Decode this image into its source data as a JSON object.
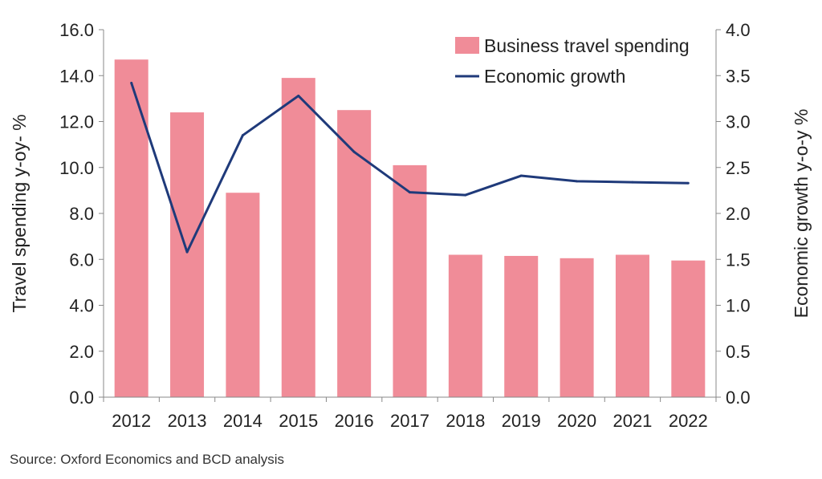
{
  "chart_data": {
    "type": "bar",
    "categories": [
      "2012",
      "2013",
      "2014",
      "2015",
      "2016",
      "2017",
      "2018",
      "2019",
      "2020",
      "2021",
      "2022"
    ],
    "series": [
      {
        "name": "Business travel spending",
        "type": "bar",
        "axis": "left",
        "color": "#f08c98",
        "values": [
          14.7,
          12.4,
          8.9,
          13.9,
          12.5,
          10.1,
          6.2,
          6.15,
          6.05,
          6.2,
          5.95
        ]
      },
      {
        "name": "Economic growth",
        "type": "line",
        "axis": "right",
        "color": "#1f3a7a",
        "values": [
          3.42,
          1.58,
          2.85,
          3.28,
          2.67,
          2.23,
          2.2,
          2.41,
          2.35,
          2.34,
          2.33
        ]
      }
    ],
    "ylabel": "Travel spending y-oy- %",
    "y2label": "Economic growth y-o-y %",
    "ylim": [
      0,
      16
    ],
    "y2lim": [
      0,
      4
    ],
    "yticks": [
      "0.0",
      "2.0",
      "4.0",
      "6.0",
      "8.0",
      "10.0",
      "12.0",
      "14.0",
      "16.0"
    ],
    "y2ticks": [
      "0.0",
      "0.5",
      "1.0",
      "1.5",
      "2.0",
      "2.5",
      "3.0",
      "3.5",
      "4.0"
    ],
    "legend": "top-right",
    "grid": false
  },
  "source": "Source: Oxford Economics and BCD analysis"
}
